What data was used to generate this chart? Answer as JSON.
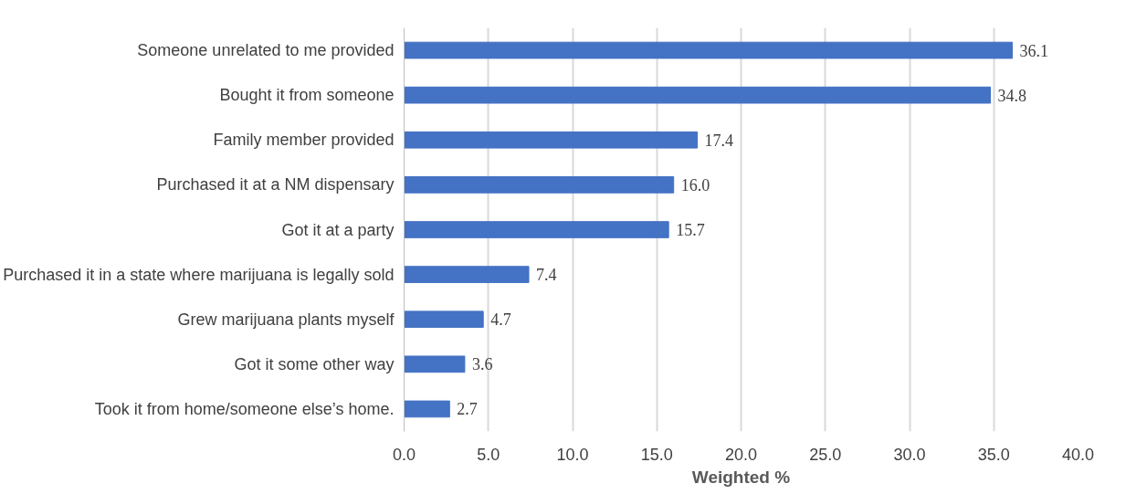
{
  "chart_data": {
    "type": "bar",
    "orientation": "horizontal",
    "xlabel": "Weighted %",
    "categories": [
      "Someone unrelated to me provided",
      "Bought it from someone",
      "Family member provided",
      "Purchased it at a NM dispensary",
      "Got it at a party",
      "Purchased it in a state where marijuana is legally sold",
      "Grew marijuana plants myself",
      "Got it some other way",
      "Took it from home/someone else’s home."
    ],
    "values": [
      36.1,
      34.8,
      17.4,
      16.0,
      15.7,
      7.4,
      4.7,
      3.6,
      2.7
    ],
    "value_labels": [
      "36.1",
      "34.8",
      "17.4",
      "16.0",
      "15.7",
      "7.4",
      "4.7",
      "3.6",
      "2.7"
    ],
    "color": "#4472c4",
    "xlim": [
      0,
      40
    ],
    "xticks": [
      {
        "value": 0,
        "label": "0.0"
      },
      {
        "value": 5,
        "label": "5.0"
      },
      {
        "value": 10,
        "label": "10.0"
      },
      {
        "value": 15,
        "label": "15.0"
      },
      {
        "value": 20,
        "label": "20.0"
      },
      {
        "value": 25,
        "label": "25.0"
      },
      {
        "value": 30,
        "label": "30.0"
      },
      {
        "value": 35,
        "label": "35.0"
      },
      {
        "value": 40,
        "label": "40.0"
      }
    ],
    "grid": "x"
  }
}
